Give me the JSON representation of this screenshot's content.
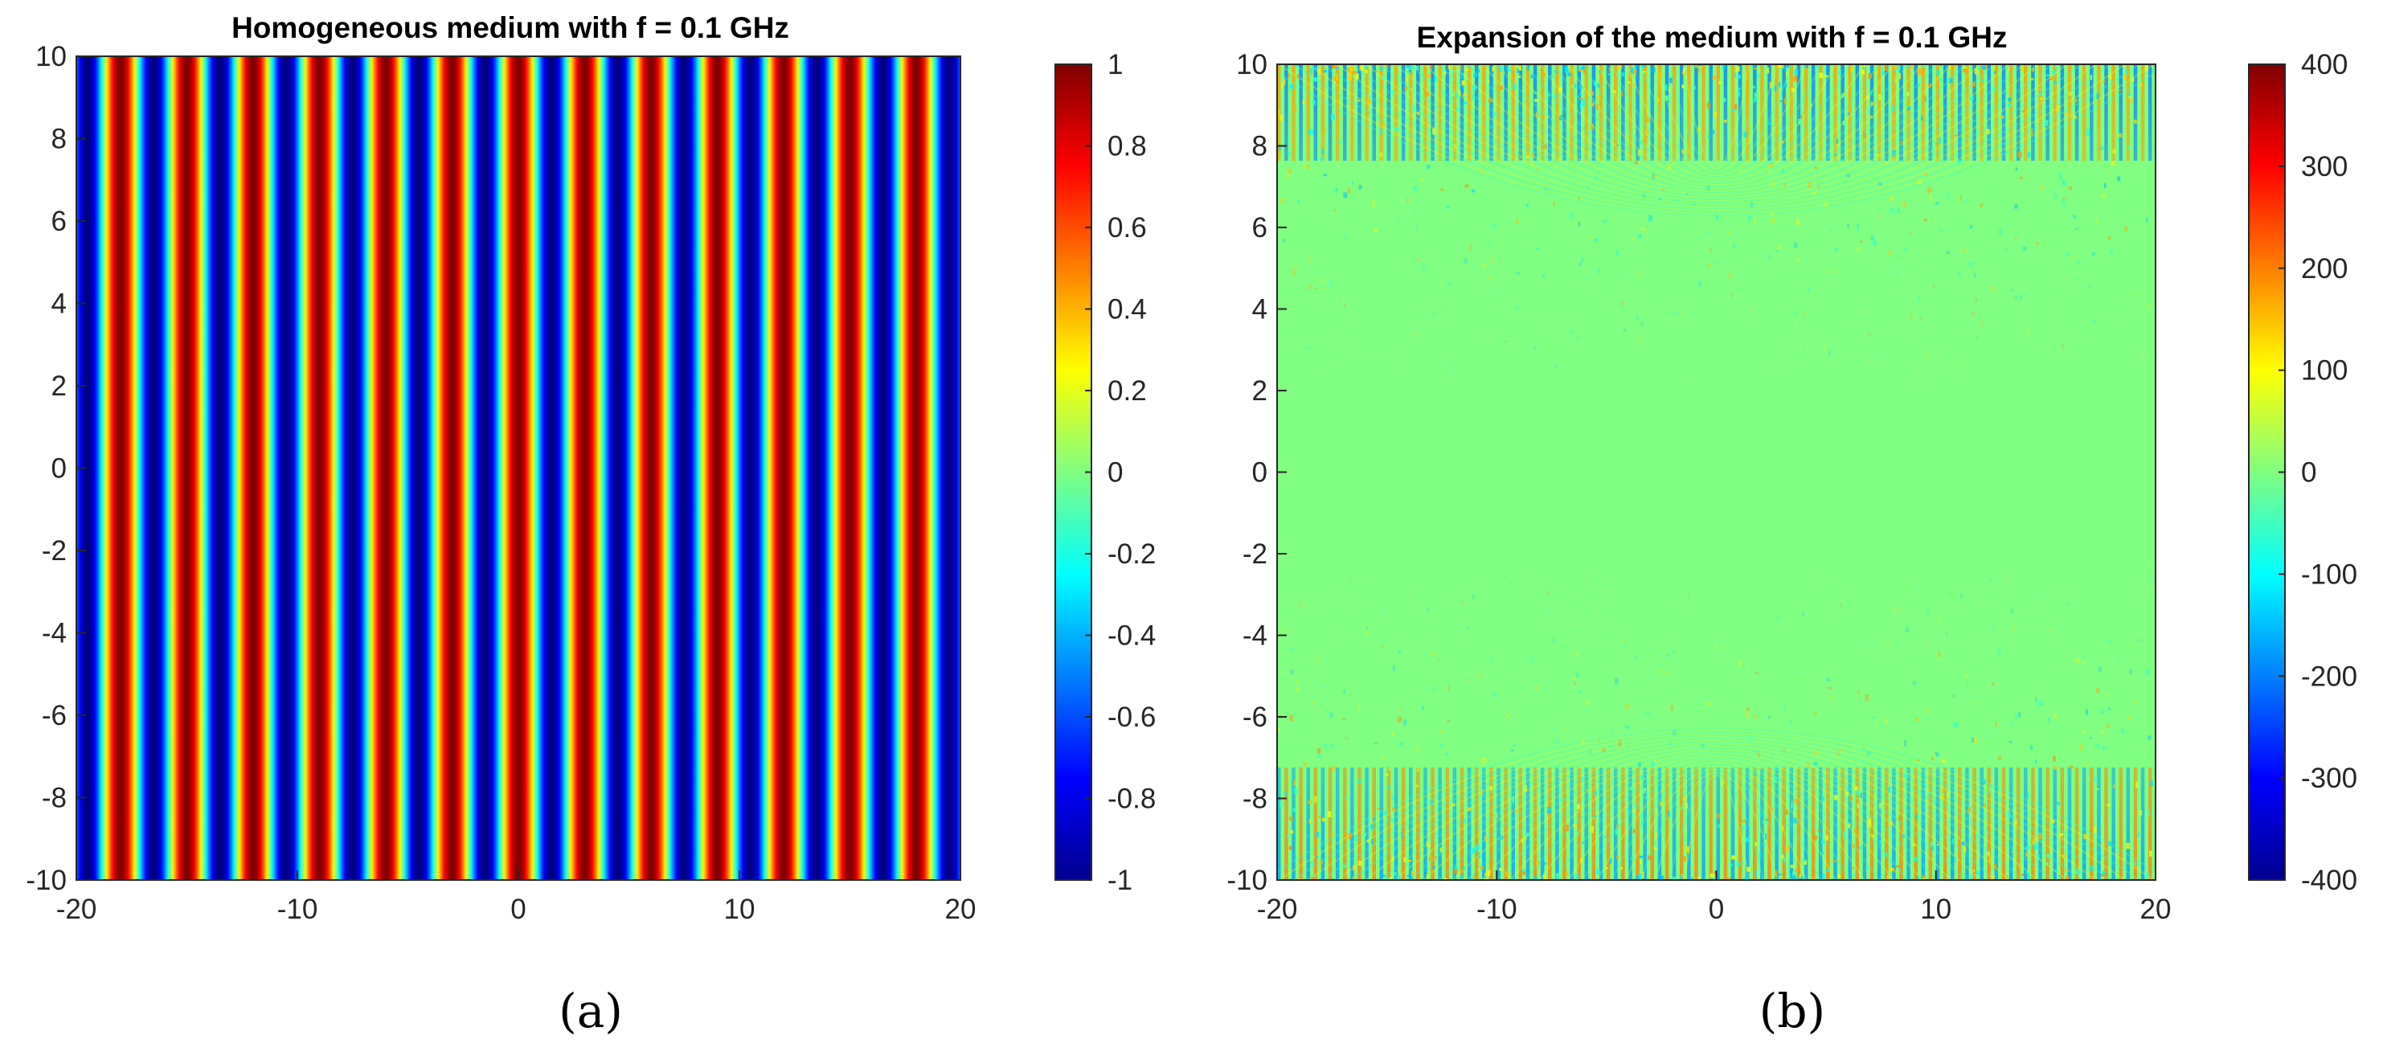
{
  "chart_data": [
    {
      "type": "heatmap",
      "title": "Homogeneous medium with f = 0.1 GHz",
      "caption": "(a)",
      "xlim": [
        -20,
        20
      ],
      "ylim": [
        -10,
        10
      ],
      "x_ticks": [
        "-20",
        "-10",
        "0",
        "10",
        "20"
      ],
      "y_ticks": [
        "-10",
        "-8",
        "-6",
        "-4",
        "-2",
        "0",
        "2",
        "4",
        "6",
        "8",
        "10"
      ],
      "colorbar": {
        "range": [
          -1,
          1
        ],
        "colormap": "jet",
        "ticks": [
          "-1",
          "-0.8",
          "-0.6",
          "-0.4",
          "-0.2",
          "0",
          "0.2",
          "0.4",
          "0.6",
          "0.8",
          "1"
        ]
      },
      "field": {
        "pattern": "vertical stripes, value = cos(2π·x/3), varying with x only",
        "stripe_period_x": 3,
        "value_at_x0": 1
      }
    },
    {
      "type": "heatmap",
      "title": "Expansion of the medium with f = 0.1 GHz",
      "caption": "(b)",
      "xlim": [
        -20,
        20
      ],
      "ylim": [
        -10,
        10
      ],
      "x_ticks": [
        "-20",
        "-10",
        "0",
        "10",
        "20"
      ],
      "y_ticks": [
        "-10",
        "-8",
        "-6",
        "-4",
        "-2",
        "0",
        "2",
        "4",
        "6",
        "8",
        "10"
      ],
      "colorbar": {
        "range": [
          -400,
          400
        ],
        "colormap": "jet",
        "ticks": [
          "-400",
          "-300",
          "-200",
          "-100",
          "0",
          "100",
          "200",
          "300",
          "400"
        ]
      },
      "field": {
        "pattern": "values near 0 across the centre band, oscillating noise with amplitude growing toward y = ±10",
        "center_value": 0
      }
    }
  ]
}
